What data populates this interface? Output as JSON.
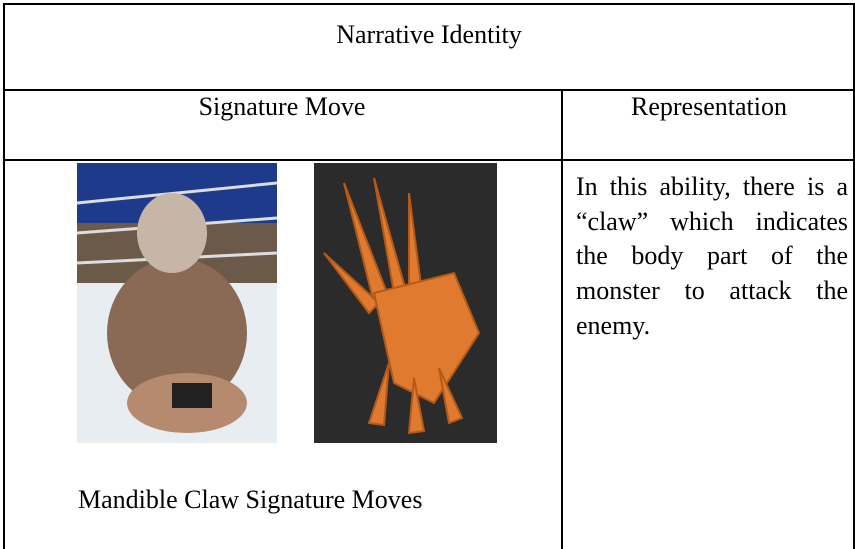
{
  "header": {
    "title": "Narrative Identity"
  },
  "table": {
    "columns": [
      "Signature Move",
      "Representation"
    ],
    "rows": [
      {
        "caption": "Mandible Claw Signature Moves",
        "representation": "In this ability, there is a “claw” which indicates the body part of the monster to attack the enemy."
      }
    ]
  }
}
